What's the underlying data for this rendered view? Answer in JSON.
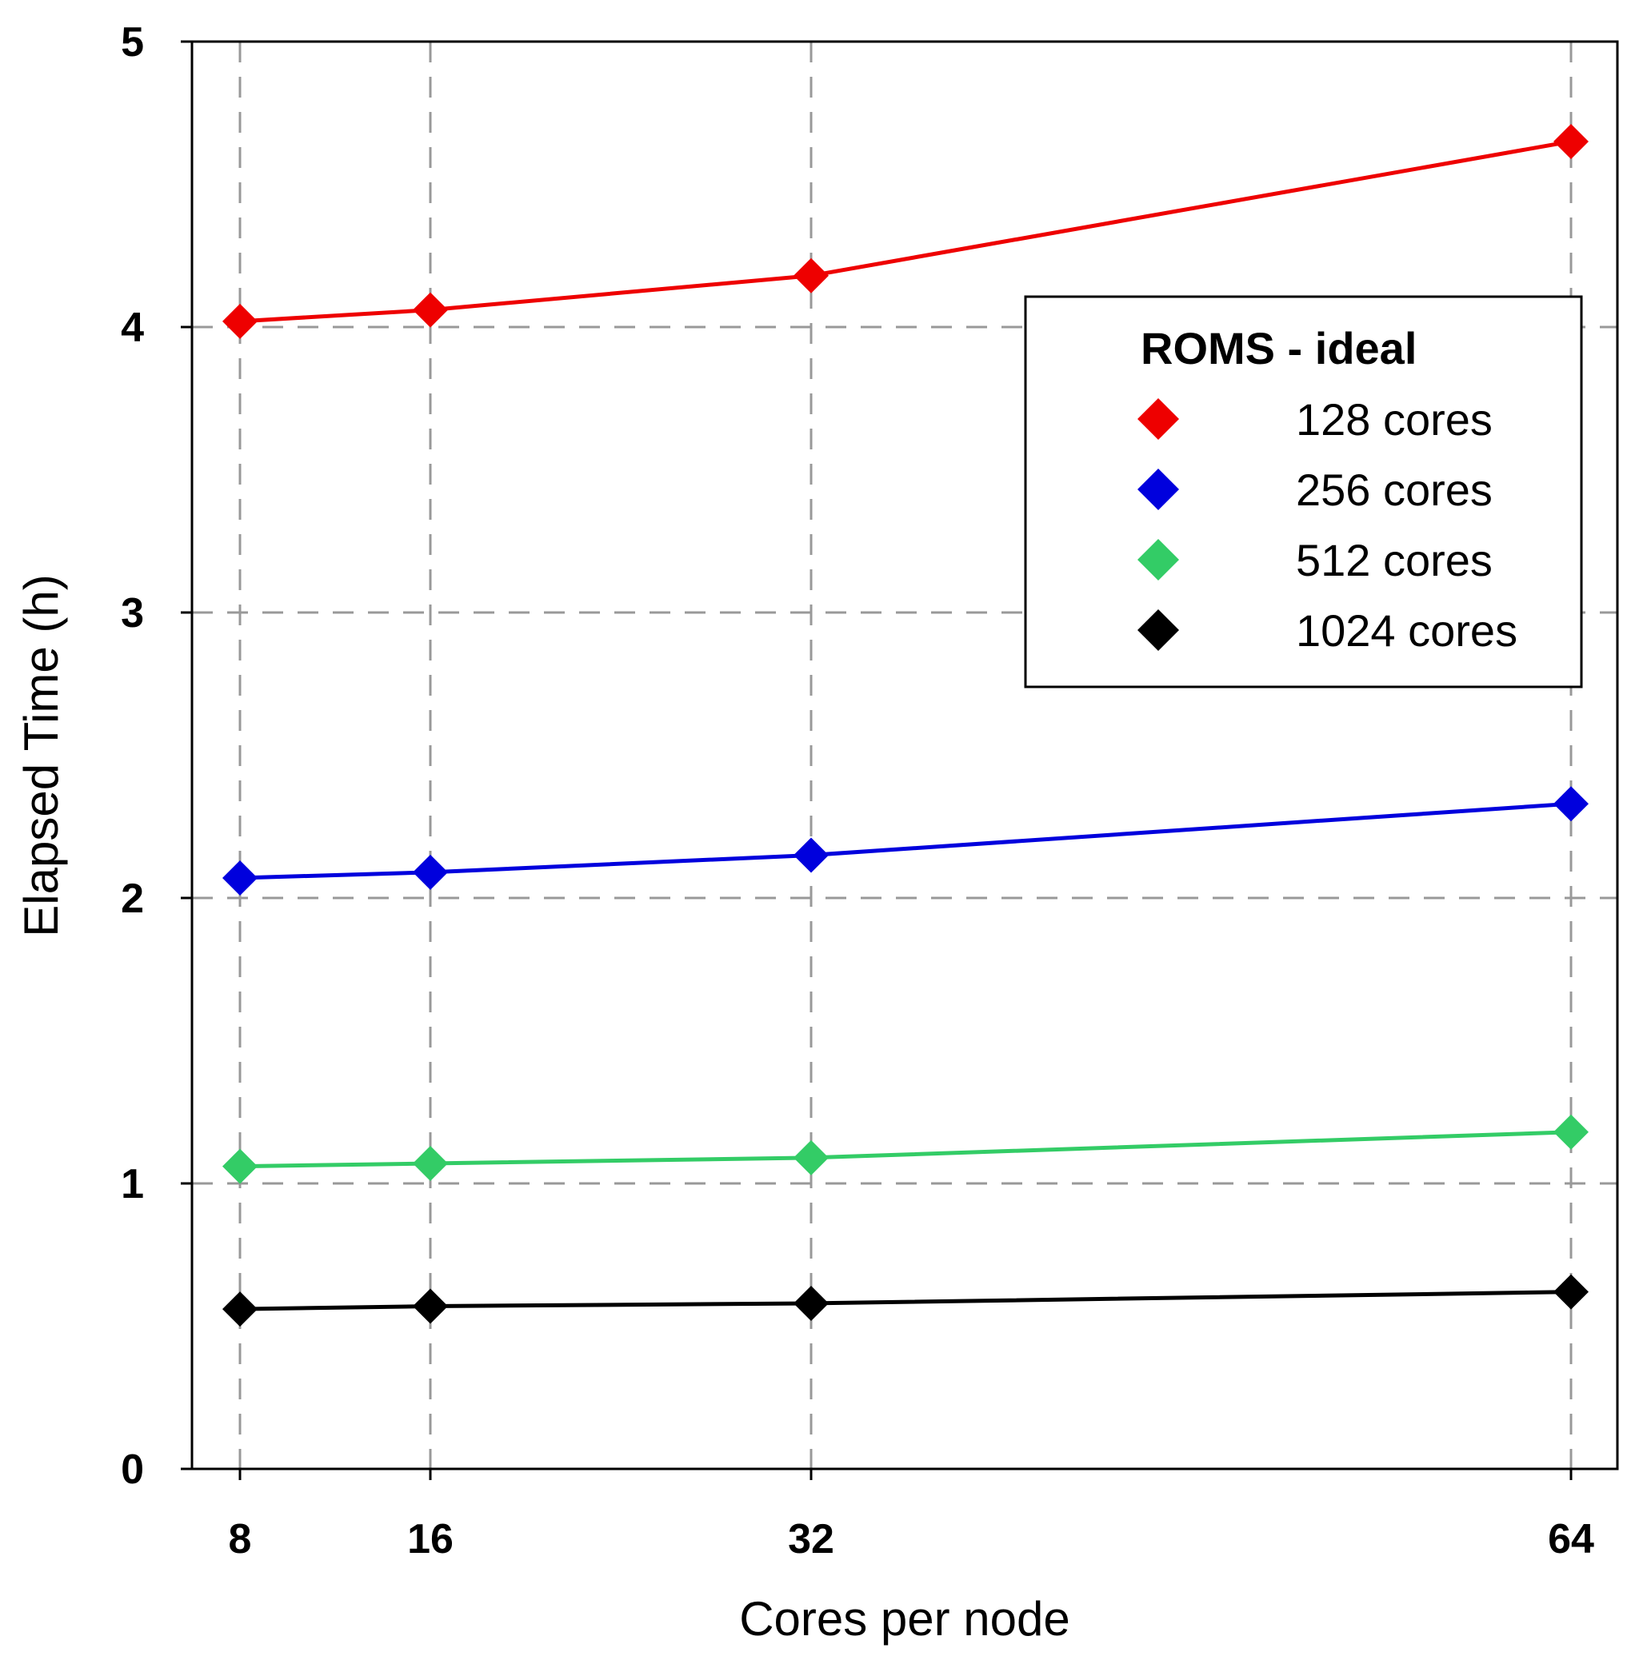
{
  "chart_data": {
    "type": "line",
    "title": "",
    "xlabel": "Cores per node",
    "ylabel": "Elapsed Time (h)",
    "x": [
      8,
      16,
      32,
      64
    ],
    "x_tick_labels": [
      "8",
      "16",
      "32",
      "64"
    ],
    "y_ticks": [
      0,
      1,
      2,
      3,
      4,
      5
    ],
    "y_tick_labels": [
      "0",
      "1",
      "2",
      "3",
      "4",
      "5"
    ],
    "ylim": [
      0,
      5
    ],
    "grid": true,
    "legend": {
      "title": "ROMS - ideal",
      "placement": "upper-right"
    },
    "series": [
      {
        "name": "128 cores",
        "color": "#ee0000",
        "values": [
          4.02,
          4.06,
          4.18,
          4.65
        ]
      },
      {
        "name": "256 cores",
        "color": "#0000dd",
        "values": [
          2.07,
          2.09,
          2.15,
          2.33
        ]
      },
      {
        "name": "512 cores",
        "color": "#33cc66",
        "values": [
          1.06,
          1.07,
          1.09,
          1.18
        ]
      },
      {
        "name": "1024 cores",
        "color": "#000000",
        "values": [
          0.56,
          0.57,
          0.58,
          0.62
        ]
      }
    ]
  }
}
